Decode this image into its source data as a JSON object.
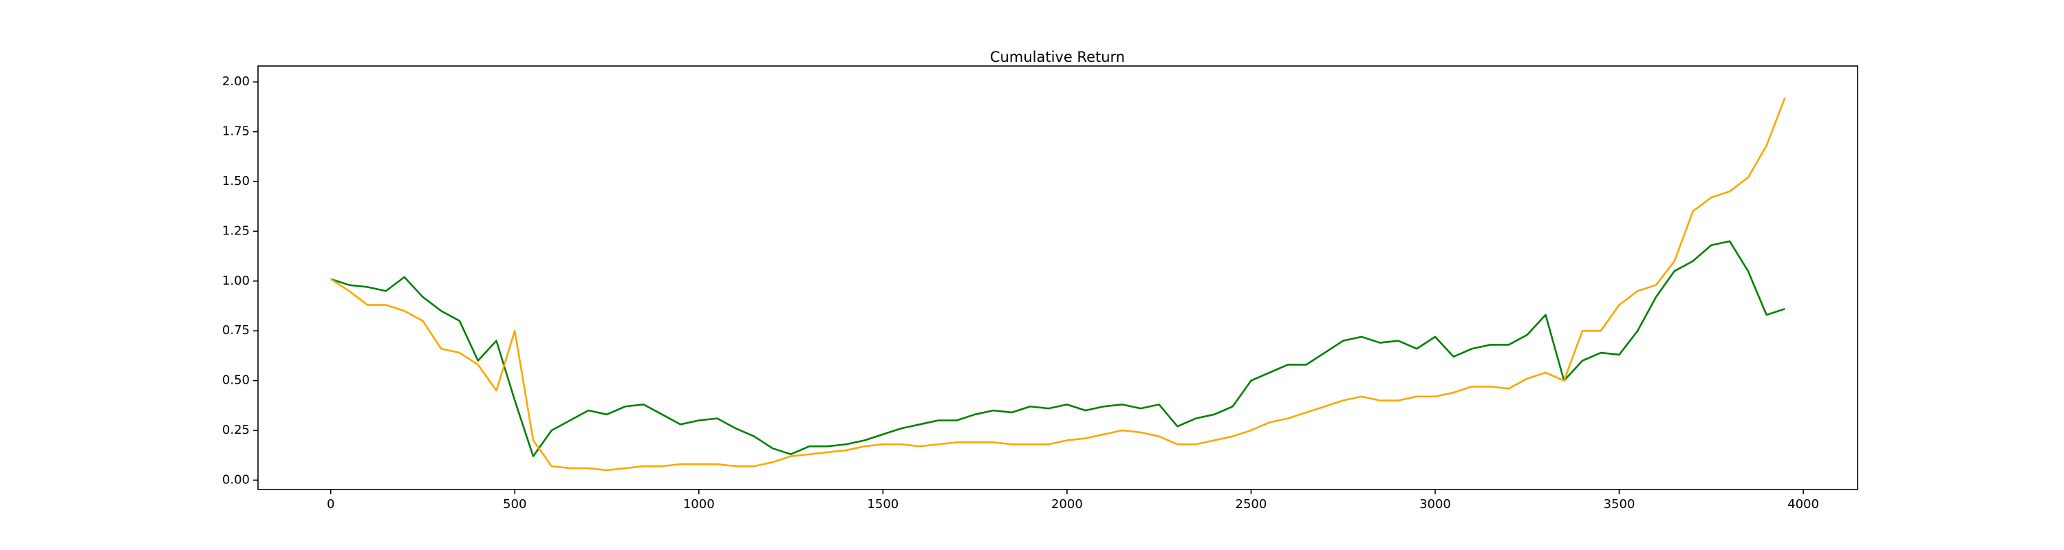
{
  "chart_data": {
    "type": "line",
    "title": "Cumulative Return",
    "x": [
      0,
      50,
      100,
      150,
      200,
      250,
      300,
      350,
      400,
      450,
      500,
      550,
      600,
      650,
      700,
      750,
      800,
      850,
      900,
      950,
      1000,
      1050,
      1100,
      1150,
      1200,
      1250,
      1300,
      1350,
      1400,
      1450,
      1500,
      1550,
      1600,
      1650,
      1700,
      1750,
      1800,
      1850,
      1900,
      1950,
      2000,
      2050,
      2100,
      2150,
      2200,
      2250,
      2300,
      2350,
      2400,
      2450,
      2500,
      2550,
      2600,
      2650,
      2700,
      2750,
      2800,
      2850,
      2900,
      2950,
      3000,
      3050,
      3100,
      3150,
      3200,
      3250,
      3300,
      3350,
      3400,
      3450,
      3500,
      3550,
      3600,
      3650,
      3700,
      3750,
      3800,
      3850,
      3900,
      3950
    ],
    "series": [
      {
        "color": "#008000",
        "values": [
          1.01,
          0.98,
          0.97,
          0.95,
          1.02,
          0.92,
          0.85,
          0.8,
          0.6,
          0.7,
          0.4,
          0.12,
          0.25,
          0.3,
          0.35,
          0.33,
          0.37,
          0.38,
          0.33,
          0.28,
          0.3,
          0.31,
          0.26,
          0.22,
          0.16,
          0.13,
          0.17,
          0.17,
          0.18,
          0.2,
          0.23,
          0.26,
          0.28,
          0.3,
          0.3,
          0.33,
          0.35,
          0.34,
          0.37,
          0.36,
          0.38,
          0.35,
          0.37,
          0.38,
          0.36,
          0.38,
          0.27,
          0.31,
          0.33,
          0.37,
          0.5,
          0.54,
          0.58,
          0.58,
          0.64,
          0.7,
          0.72,
          0.69,
          0.7,
          0.66,
          0.72,
          0.62,
          0.66,
          0.68,
          0.68,
          0.73,
          0.83,
          0.5,
          0.6,
          0.64,
          0.63,
          0.75,
          0.92,
          1.05,
          1.1,
          1.18,
          1.2,
          1.05,
          0.83,
          0.86
        ]
      },
      {
        "color": "#ffa500",
        "values": [
          1.01,
          0.95,
          0.88,
          0.88,
          0.85,
          0.8,
          0.66,
          0.64,
          0.58,
          0.45,
          0.75,
          0.2,
          0.07,
          0.06,
          0.06,
          0.05,
          0.06,
          0.07,
          0.07,
          0.08,
          0.08,
          0.08,
          0.07,
          0.07,
          0.09,
          0.12,
          0.13,
          0.14,
          0.15,
          0.17,
          0.18,
          0.18,
          0.17,
          0.18,
          0.19,
          0.19,
          0.19,
          0.18,
          0.18,
          0.18,
          0.2,
          0.21,
          0.23,
          0.25,
          0.24,
          0.22,
          0.18,
          0.18,
          0.2,
          0.22,
          0.25,
          0.29,
          0.31,
          0.34,
          0.37,
          0.4,
          0.42,
          0.4,
          0.4,
          0.42,
          0.42,
          0.44,
          0.47,
          0.47,
          0.46,
          0.51,
          0.54,
          0.5,
          0.75,
          0.75,
          0.88,
          0.95,
          0.98,
          1.1,
          1.35,
          1.42,
          1.45,
          1.52,
          1.68,
          1.92
        ]
      }
    ],
    "xlim": [
      -197.5,
      4147.5
    ],
    "ylim": [
      -0.047,
      2.08
    ],
    "xticks": [
      0,
      500,
      1000,
      1500,
      2000,
      2500,
      3000,
      3500,
      4000
    ],
    "yticks": [
      {
        "value": 0,
        "label": "0.00"
      },
      {
        "value": 0.25,
        "label": "0.25"
      },
      {
        "value": 0.5,
        "label": "0.50"
      },
      {
        "value": 0.75,
        "label": "0.75"
      },
      {
        "value": 1,
        "label": "1.00"
      },
      {
        "value": 1.25,
        "label": "1.25"
      },
      {
        "value": 1.5,
        "label": "1.50"
      },
      {
        "value": 1.75,
        "label": "1.75"
      },
      {
        "value": 2,
        "label": "2.00"
      }
    ],
    "grid": false
  }
}
